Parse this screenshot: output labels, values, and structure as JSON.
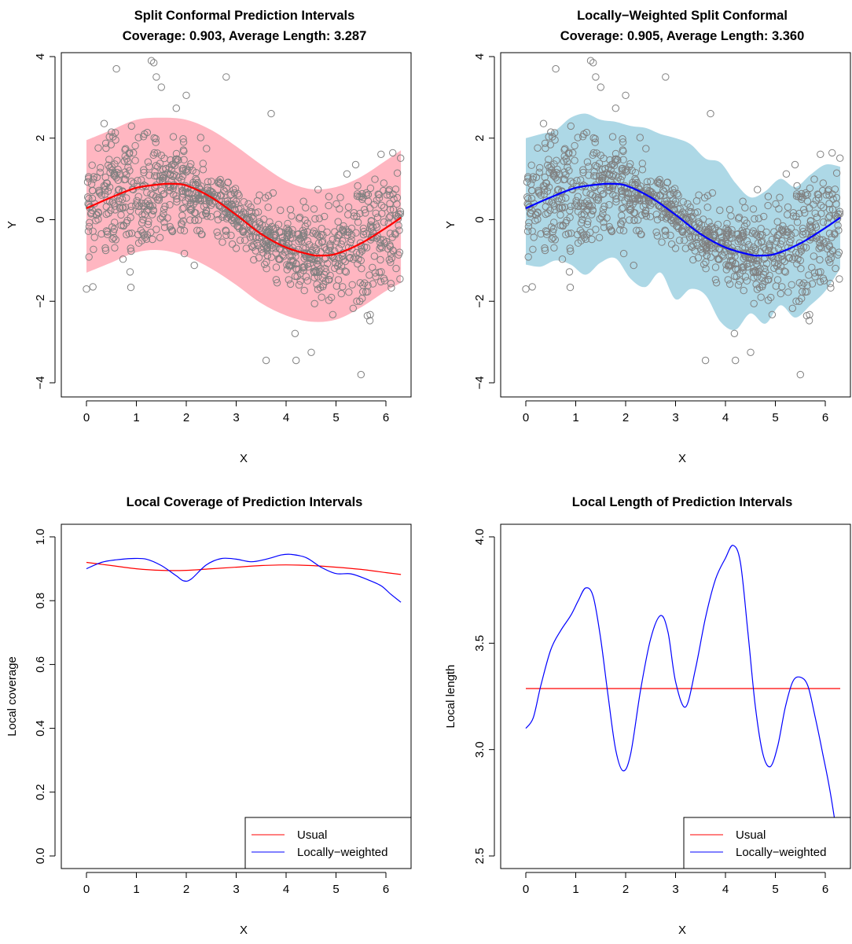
{
  "chart_data": [
    {
      "type": "scatter",
      "title": "Split Conformal Prediction Intervals",
      "subtitle": "Coverage: 0.903, Average Length: 3.287",
      "xlabel": "X",
      "ylabel": "Y",
      "xlim": [
        0,
        6.3
      ],
      "ylim": [
        -4,
        4
      ],
      "xticks": [
        0,
        1,
        2,
        3,
        4,
        5,
        6
      ],
      "yticks": [
        -4,
        -2,
        0,
        2,
        4
      ],
      "grid": false,
      "colors": {
        "band": "#ffb6c1",
        "line": "#ff0000",
        "points": "#808080"
      },
      "band": {
        "x": [
          0,
          0.5,
          1,
          1.5,
          2,
          2.5,
          3,
          3.5,
          4,
          4.5,
          5,
          5.5,
          6,
          6.3
        ],
        "lower": [
          -1.3,
          -1.05,
          -0.8,
          -0.75,
          -0.9,
          -1.2,
          -1.6,
          -2.05,
          -2.35,
          -2.5,
          -2.45,
          -2.15,
          -1.75,
          -1.55
        ],
        "upper": [
          1.95,
          2.2,
          2.45,
          2.5,
          2.45,
          2.2,
          1.8,
          1.35,
          0.95,
          0.75,
          0.8,
          1.05,
          1.45,
          1.7
        ]
      },
      "fit": {
        "x": [
          0,
          0.5,
          1,
          1.5,
          1.7,
          2,
          2.5,
          3,
          3.5,
          4,
          4.5,
          4.7,
          5,
          5.5,
          6,
          6.3
        ],
        "y": [
          0.28,
          0.55,
          0.78,
          0.87,
          0.88,
          0.84,
          0.55,
          0.12,
          -0.35,
          -0.68,
          -0.86,
          -0.88,
          -0.84,
          -0.58,
          -0.2,
          0.05
        ]
      },
      "points": {
        "n": 1000,
        "notable": [
          [
            1.3,
            3.9
          ],
          [
            1.35,
            3.85
          ],
          [
            0.6,
            3.7
          ],
          [
            1.4,
            3.5
          ],
          [
            2.8,
            3.5
          ],
          [
            1.5,
            3.25
          ],
          [
            2.0,
            3.05
          ],
          [
            3.7,
            2.6
          ],
          [
            4.2,
            -3.45
          ],
          [
            5.5,
            -3.8
          ],
          [
            3.6,
            -3.45
          ],
          [
            0.0,
            -1.7
          ]
        ]
      },
      "legend": null
    },
    {
      "type": "scatter",
      "title": "Locally−Weighted Split Conformal",
      "subtitle": "Coverage: 0.905, Average Length: 3.360",
      "xlabel": "X",
      "ylabel": "Y",
      "xlim": [
        0,
        6.3
      ],
      "ylim": [
        -4,
        4
      ],
      "xticks": [
        0,
        1,
        2,
        3,
        4,
        5,
        6
      ],
      "yticks": [
        -4,
        -2,
        0,
        2,
        4
      ],
      "grid": false,
      "colors": {
        "band": "#add8e6",
        "line": "#0000ff",
        "points": "#808080"
      },
      "band": {
        "x": [
          0,
          0.3,
          0.6,
          0.9,
          1.2,
          1.5,
          1.8,
          2.1,
          2.4,
          2.7,
          3.0,
          3.3,
          3.6,
          3.9,
          4.2,
          4.5,
          4.8,
          5.1,
          5.4,
          5.7,
          6.0,
          6.3
        ],
        "lower": [
          -1.1,
          -1.15,
          -1.0,
          -1.1,
          -1.35,
          -1.05,
          -0.95,
          -1.45,
          -1.65,
          -1.3,
          -1.95,
          -1.7,
          -1.85,
          -2.5,
          -2.7,
          -2.3,
          -2.55,
          -2.1,
          -2.4,
          -2.1,
          -1.75,
          -1.2
        ],
        "upper": [
          2.0,
          2.1,
          2.2,
          2.5,
          2.6,
          2.45,
          2.4,
          2.3,
          2.25,
          2.1,
          2.0,
          1.85,
          1.5,
          1.4,
          0.9,
          0.55,
          0.7,
          1.0,
          0.8,
          1.1,
          1.35,
          1.3
        ]
      },
      "fit": {
        "x": [
          0,
          0.5,
          1,
          1.5,
          1.7,
          2,
          2.5,
          3,
          3.5,
          4,
          4.5,
          4.7,
          5,
          5.5,
          6,
          6.3
        ],
        "y": [
          0.28,
          0.55,
          0.78,
          0.87,
          0.88,
          0.84,
          0.55,
          0.12,
          -0.35,
          -0.68,
          -0.86,
          -0.88,
          -0.84,
          -0.58,
          -0.2,
          0.05
        ]
      },
      "points": {
        "n": 1000,
        "notable": [
          [
            1.3,
            3.9
          ],
          [
            1.35,
            3.85
          ],
          [
            0.6,
            3.7
          ],
          [
            1.4,
            3.5
          ],
          [
            2.8,
            3.5
          ],
          [
            1.5,
            3.25
          ],
          [
            2.0,
            3.05
          ],
          [
            3.7,
            2.6
          ],
          [
            4.2,
            -3.45
          ],
          [
            5.5,
            -3.8
          ],
          [
            3.6,
            -3.45
          ],
          [
            0.0,
            -1.7
          ]
        ]
      },
      "legend": null
    },
    {
      "type": "line",
      "title": "Local Coverage of Prediction Intervals",
      "xlabel": "X",
      "ylabel": "Local coverage",
      "xlim": [
        0,
        6.3
      ],
      "ylim": [
        0,
        1
      ],
      "xticks": [
        0,
        1,
        2,
        3,
        4,
        5,
        6
      ],
      "yticks": [
        "0.0",
        "0.2",
        "0.4",
        "0.6",
        "0.8",
        "1.0"
      ],
      "grid": false,
      "series": [
        {
          "name": "Usual",
          "color": "#ff0000",
          "x": [
            0,
            0.5,
            1,
            1.5,
            2,
            2.5,
            3,
            3.5,
            4,
            4.5,
            5,
            5.5,
            6,
            6.3
          ],
          "y": [
            0.92,
            0.91,
            0.9,
            0.895,
            0.895,
            0.9,
            0.905,
            0.91,
            0.912,
            0.91,
            0.905,
            0.898,
            0.888,
            0.882
          ]
        },
        {
          "name": "Locally−weighted",
          "color": "#0000ff",
          "x": [
            0,
            0.3,
            0.6,
            0.9,
            1.2,
            1.5,
            1.8,
            1.95,
            2.1,
            2.4,
            2.7,
            3.0,
            3.3,
            3.6,
            3.9,
            4.1,
            4.4,
            4.7,
            5.0,
            5.3,
            5.6,
            5.9,
            6.1,
            6.3
          ],
          "y": [
            0.9,
            0.92,
            0.928,
            0.932,
            0.93,
            0.91,
            0.878,
            0.862,
            0.868,
            0.912,
            0.932,
            0.93,
            0.922,
            0.93,
            0.943,
            0.945,
            0.935,
            0.905,
            0.885,
            0.884,
            0.868,
            0.847,
            0.82,
            0.795
          ]
        }
      ],
      "legend": "bottom-right"
    },
    {
      "type": "line",
      "title": "Local Length of Prediction Intervals",
      "xlabel": "X",
      "ylabel": "Local length",
      "xlim": [
        0,
        6.3
      ],
      "ylim": [
        2.5,
        4.0
      ],
      "xticks": [
        0,
        1,
        2,
        3,
        4,
        5,
        6
      ],
      "yticks": [
        "2.5",
        "3.0",
        "3.5",
        "4.0"
      ],
      "grid": false,
      "series": [
        {
          "name": "Usual",
          "color": "#ff0000",
          "x": [
            0,
            6.3
          ],
          "y": [
            3.287,
            3.287
          ]
        },
        {
          "name": "Locally−weighted",
          "color": "#0000ff",
          "x": [
            0,
            0.15,
            0.3,
            0.5,
            0.7,
            0.9,
            1.05,
            1.2,
            1.35,
            1.5,
            1.65,
            1.8,
            1.95,
            2.1,
            2.3,
            2.5,
            2.7,
            2.85,
            3.0,
            3.2,
            3.4,
            3.6,
            3.8,
            4.0,
            4.15,
            4.3,
            4.45,
            4.6,
            4.75,
            4.9,
            5.05,
            5.2,
            5.35,
            5.5,
            5.65,
            5.8,
            5.95,
            6.1,
            6.3
          ],
          "y": [
            3.1,
            3.15,
            3.3,
            3.47,
            3.56,
            3.63,
            3.7,
            3.76,
            3.72,
            3.52,
            3.25,
            3.0,
            2.9,
            2.98,
            3.28,
            3.52,
            3.63,
            3.55,
            3.32,
            3.2,
            3.38,
            3.62,
            3.8,
            3.9,
            3.96,
            3.88,
            3.55,
            3.2,
            2.98,
            2.92,
            3.02,
            3.2,
            3.32,
            3.34,
            3.3,
            3.15,
            2.98,
            2.8,
            2.5
          ]
        }
      ],
      "legend": "bottom-right"
    }
  ]
}
